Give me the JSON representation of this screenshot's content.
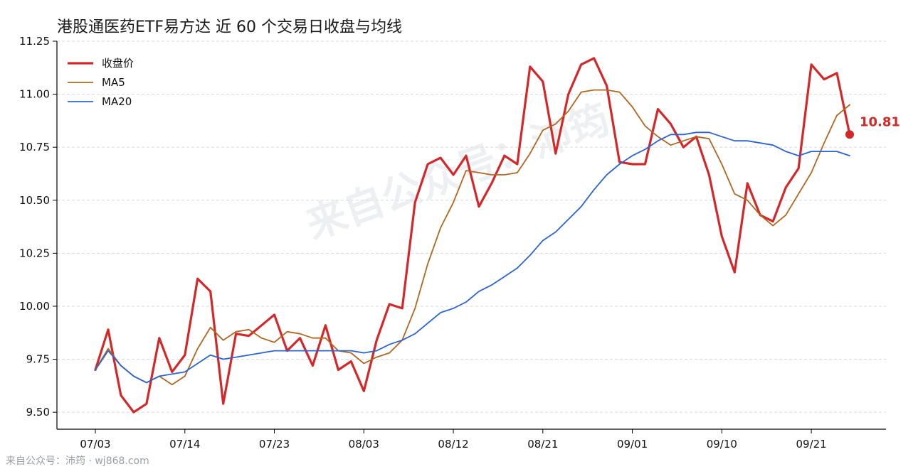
{
  "title": "港股通医药ETF易方达 近 60 个交易日收盘与均线",
  "watermark": "来自公众号：沛筠",
  "footer": "来自公众号：沛筠 · wj868.com",
  "chart_data": {
    "type": "line",
    "x_ticks": [
      "07/03",
      "07/14",
      "07/23",
      "08/03",
      "08/12",
      "08/21",
      "09/01",
      "09/10",
      "09/21"
    ],
    "x_tick_index": [
      0,
      7,
      14,
      21,
      28,
      35,
      42,
      49,
      56
    ],
    "ylim": [
      9.42,
      11.25
    ],
    "y_ticks": [
      "9.50",
      "9.75",
      "10.00",
      "10.25",
      "10.50",
      "10.75",
      "11.00",
      "11.25"
    ],
    "y_tick_values": [
      9.5,
      9.75,
      10.0,
      10.25,
      10.5,
      10.75,
      11.0,
      11.25
    ],
    "grid": "horizontal dashed",
    "legend_position": "top-left",
    "last_value_label": "10.81",
    "series": [
      {
        "name": "收盘价",
        "color": "#d62728",
        "width": 3.2,
        "values": [
          9.7,
          9.89,
          9.58,
          9.5,
          9.54,
          9.85,
          9.69,
          9.77,
          10.13,
          10.07,
          9.54,
          9.87,
          9.86,
          9.91,
          9.96,
          9.79,
          9.85,
          9.72,
          9.91,
          9.7,
          9.74,
          9.6,
          9.84,
          10.01,
          9.99,
          10.49,
          10.67,
          10.7,
          10.62,
          10.71,
          10.47,
          10.58,
          10.71,
          10.67,
          11.13,
          11.06,
          10.72,
          11.0,
          11.14,
          11.17,
          11.04,
          10.68,
          10.67,
          10.67,
          10.93,
          10.86,
          10.75,
          10.8,
          10.62,
          10.33,
          10.16,
          10.58,
          10.43,
          10.4,
          10.56,
          10.65,
          11.14,
          11.07,
          11.1,
          10.81
        ]
      },
      {
        "name": "MA5",
        "color": "#b5651d",
        "width": 1.8,
        "values": [
          9.7,
          9.8,
          9.72,
          9.67,
          9.64,
          9.67,
          9.63,
          9.67,
          9.8,
          9.9,
          9.84,
          9.88,
          9.89,
          9.85,
          9.83,
          9.88,
          9.87,
          9.85,
          9.85,
          9.79,
          9.78,
          9.73,
          9.76,
          9.78,
          9.84,
          9.99,
          10.2,
          10.37,
          10.49,
          10.64,
          10.63,
          10.62,
          10.62,
          10.63,
          10.72,
          10.83,
          10.86,
          10.92,
          11.01,
          11.02,
          11.02,
          11.01,
          10.94,
          10.85,
          10.8,
          10.76,
          10.78,
          10.8,
          10.79,
          10.67,
          10.53,
          10.5,
          10.43,
          10.38,
          10.43,
          10.53,
          10.63,
          10.77,
          10.9,
          10.95
        ]
      },
      {
        "name": "MA20",
        "color": "#2a64d8",
        "width": 1.8,
        "values": [
          9.7,
          9.79,
          9.72,
          9.67,
          9.64,
          9.67,
          9.68,
          9.69,
          9.73,
          9.77,
          9.75,
          9.76,
          9.77,
          9.78,
          9.79,
          9.79,
          9.79,
          9.79,
          9.79,
          9.79,
          9.79,
          9.78,
          9.79,
          9.82,
          9.84,
          9.87,
          9.92,
          9.97,
          9.99,
          10.02,
          10.07,
          10.1,
          10.14,
          10.18,
          10.24,
          10.31,
          10.35,
          10.41,
          10.47,
          10.55,
          10.62,
          10.67,
          10.71,
          10.74,
          10.78,
          10.81,
          10.81,
          10.82,
          10.82,
          10.8,
          10.78,
          10.78,
          10.77,
          10.76,
          10.73,
          10.71,
          10.73,
          10.73,
          10.73,
          10.71
        ]
      }
    ]
  }
}
